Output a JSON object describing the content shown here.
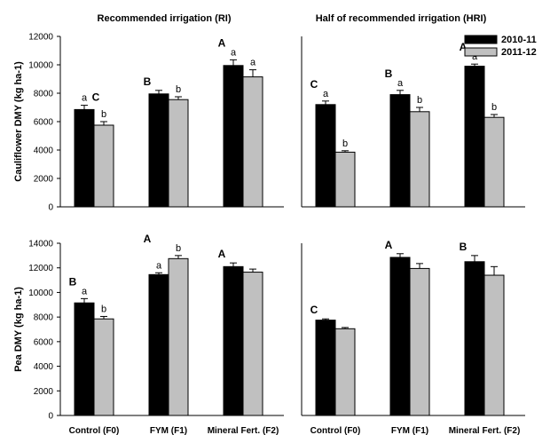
{
  "figure": {
    "legend": [
      {
        "name": "2010-11",
        "color": "#000000"
      },
      {
        "name": "2011-12",
        "color": "#c0c0c0"
      }
    ],
    "categories": [
      "Control (F0)",
      "FYM (F1)",
      "Mineral Fert. (F2)"
    ]
  },
  "chart_data": [
    {
      "type": "bar",
      "title": "Recommended irrigation (RI)",
      "ylabel": "Cauliflower DMY  (kg ha-1)",
      "ylim": [
        0,
        12000
      ],
      "yticks": [
        0,
        2000,
        4000,
        6000,
        8000,
        10000,
        12000
      ],
      "categories": [
        "Control (F0)",
        "FYM (F1)",
        "Mineral Fert. (F2)"
      ],
      "series": [
        {
          "name": "2010-11",
          "values": [
            6850,
            7950,
            9950
          ],
          "errors": [
            300,
            250,
            400
          ],
          "labels": [
            "a",
            "",
            "a"
          ]
        },
        {
          "name": "2011-12",
          "values": [
            5750,
            7550,
            9150
          ],
          "errors": [
            250,
            200,
            500
          ],
          "labels": [
            "b",
            "b",
            "a"
          ]
        }
      ],
      "group_labels": [
        "C",
        "B",
        "A"
      ]
    },
    {
      "type": "bar",
      "title": "Half of recommended irrigation (HRI)",
      "ylabel": "",
      "ylim": [
        0,
        12000
      ],
      "yticks": [],
      "categories": [
        "Control (F0)",
        "FYM (F1)",
        "Mineral Fert. (F2)"
      ],
      "series": [
        {
          "name": "2010-11",
          "values": [
            7200,
            7900,
            9900
          ],
          "errors": [
            250,
            300,
            150
          ],
          "labels": [
            "a",
            "a",
            "a"
          ]
        },
        {
          "name": "2011-12",
          "values": [
            3850,
            6700,
            6300
          ],
          "errors": [
            100,
            300,
            200
          ],
          "labels": [
            "b",
            "b",
            "b"
          ]
        }
      ],
      "group_labels": [
        "C",
        "B",
        "A"
      ]
    },
    {
      "type": "bar",
      "title": "",
      "ylabel": "Pea DMY  (kg ha-1)",
      "ylim": [
        0,
        14000
      ],
      "yticks": [
        0,
        2000,
        4000,
        6000,
        8000,
        10000,
        12000,
        14000
      ],
      "categories": [
        "Control (F0)",
        "FYM (F1)",
        "Mineral Fert. (F2)"
      ],
      "series": [
        {
          "name": "2010-11",
          "values": [
            9150,
            11450,
            12100
          ],
          "errors": [
            350,
            150,
            300
          ],
          "labels": [
            "a",
            "a",
            ""
          ]
        },
        {
          "name": "2011-12",
          "values": [
            7850,
            12750,
            11650
          ],
          "errors": [
            200,
            250,
            250
          ],
          "labels": [
            "b",
            "b",
            ""
          ]
        }
      ],
      "group_labels": [
        "B",
        "A",
        "A"
      ]
    },
    {
      "type": "bar",
      "title": "",
      "ylabel": "",
      "ylim": [
        0,
        14000
      ],
      "yticks": [],
      "categories": [
        "Control (F0)",
        "FYM (F1)",
        "Mineral Fert. (F2)"
      ],
      "series": [
        {
          "name": "2010-11",
          "values": [
            7750,
            12850,
            12500
          ],
          "errors": [
            100,
            300,
            500
          ],
          "labels": [
            "",
            "",
            ""
          ]
        },
        {
          "name": "2011-12",
          "values": [
            7050,
            11950,
            11400
          ],
          "errors": [
            100,
            400,
            700
          ],
          "labels": [
            "",
            "",
            ""
          ]
        }
      ],
      "group_labels": [
        "C",
        "A",
        "B"
      ]
    }
  ]
}
